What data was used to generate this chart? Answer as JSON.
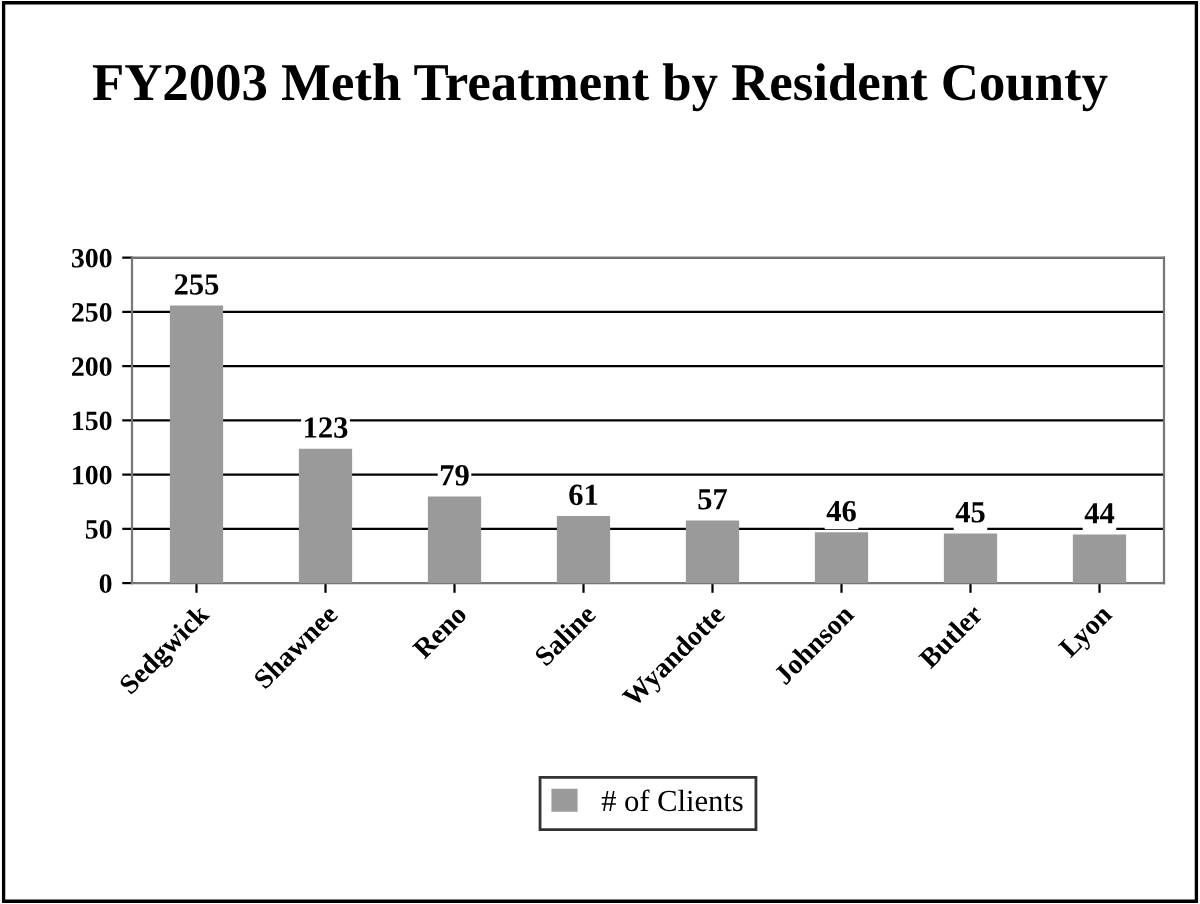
{
  "chart_data": {
    "type": "bar",
    "title": "FY2003 Meth Treatment by Resident County",
    "categories": [
      "Sedgwick",
      "Shawnee",
      "Reno",
      "Saline",
      "Wyandotte",
      "Johnson",
      "Butler",
      "Lyon"
    ],
    "series": [
      {
        "name": "# of Clients",
        "color": "#9a9a9a",
        "values": [
          255,
          123,
          79,
          61,
          57,
          46,
          45,
          44
        ]
      }
    ],
    "ylim": [
      0,
      300
    ],
    "yticks": [
      0,
      50,
      100,
      150,
      200,
      250,
      300
    ],
    "grid": "y",
    "legend": "bottom",
    "data_labels": true
  }
}
